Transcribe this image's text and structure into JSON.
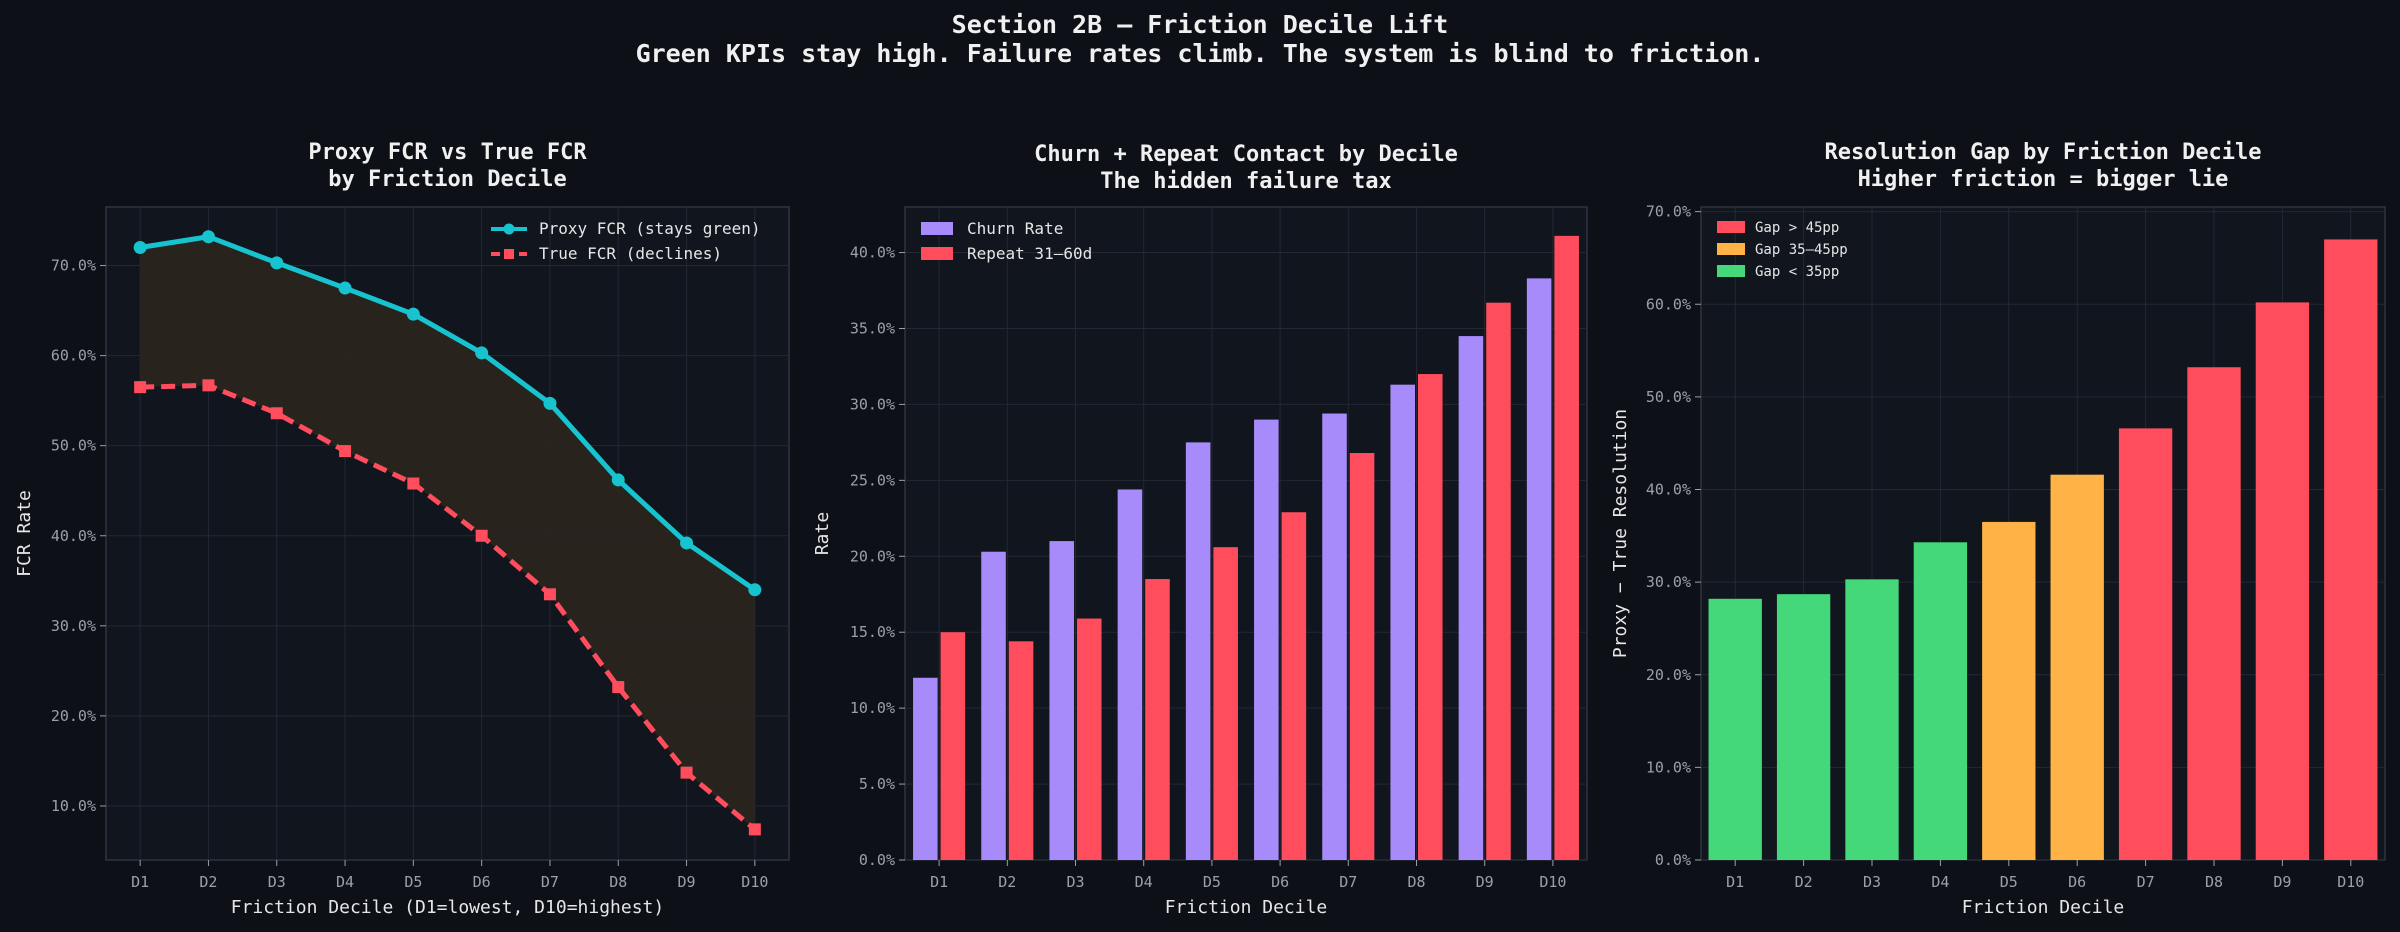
{
  "page": {
    "title": "Section 2B — Friction Decile Lift",
    "subtitle": "Green KPIs stay high. Failure rates climb. The system is blind to friction."
  },
  "colors": {
    "background": "#0d1017",
    "panel": "#11151d",
    "grid": "#232833",
    "axis": "#2e3440",
    "tick_text": "#9aa0aa",
    "text": "#e6e6e6",
    "cyan": "#17c3cf",
    "red": "#ff4d5e",
    "purple": "#a78bfa",
    "orange": "#ffb347",
    "green": "#44d87a",
    "fill": "#2a241d"
  },
  "chart_data": [
    {
      "type": "line",
      "title_lines": [
        "Proxy FCR vs True FCR",
        "by Friction Decile"
      ],
      "xlabel": "Friction Decile (D1=lowest, D10=highest)",
      "ylabel": "FCR Rate",
      "categories": [
        "D1",
        "D2",
        "D3",
        "D4",
        "D5",
        "D6",
        "D7",
        "D8",
        "D9",
        "D10"
      ],
      "ylim": [
        4,
        76.5
      ],
      "yticks": [
        10,
        20,
        30,
        40,
        50,
        60,
        70
      ],
      "tick_format": "percent_1dp",
      "grid": true,
      "legend": "top-right",
      "shaded_gap_between_series": true,
      "series": [
        {
          "name": "Proxy FCR (stays green)",
          "values": [
            72.0,
            73.2,
            70.3,
            67.5,
            64.6,
            60.3,
            54.7,
            46.2,
            39.2,
            34.0
          ],
          "color": "#17c3cf",
          "style": "solid",
          "marker": "circle"
        },
        {
          "name": "True FCR (declines)",
          "values": [
            56.5,
            56.7,
            53.6,
            49.4,
            45.8,
            40.0,
            33.5,
            23.2,
            13.7,
            7.4
          ],
          "color": "#ff4d5e",
          "style": "dashed",
          "marker": "square"
        }
      ]
    },
    {
      "type": "bar",
      "title_lines": [
        "Churn + Repeat Contact by Decile",
        "The hidden failure tax"
      ],
      "xlabel": "Friction Decile",
      "ylabel": "Rate",
      "categories": [
        "D1",
        "D2",
        "D3",
        "D4",
        "D5",
        "D6",
        "D7",
        "D8",
        "D9",
        "D10"
      ],
      "ylim": [
        0,
        43
      ],
      "yticks": [
        0,
        5,
        10,
        15,
        20,
        25,
        30,
        35,
        40
      ],
      "tick_format": "percent_1dp",
      "grid": true,
      "legend": "top-left",
      "series": [
        {
          "name": "Churn Rate",
          "values": [
            12.0,
            20.3,
            21.0,
            24.4,
            27.5,
            29.0,
            29.4,
            31.3,
            34.5,
            38.3
          ],
          "color": "#a78bfa"
        },
        {
          "name": "Repeat 31–60d",
          "values": [
            15.0,
            14.4,
            15.9,
            18.5,
            20.6,
            22.9,
            26.8,
            32.0,
            36.7,
            41.1
          ],
          "color": "#ff4d5e"
        }
      ]
    },
    {
      "type": "bar",
      "title_lines": [
        "Resolution Gap by Friction Decile",
        "Higher friction = bigger lie"
      ],
      "xlabel": "Friction Decile",
      "ylabel": "Proxy − True Resolution",
      "categories": [
        "D1",
        "D2",
        "D3",
        "D4",
        "D5",
        "D6",
        "D7",
        "D8",
        "D9",
        "D10"
      ],
      "ylim": [
        0,
        70.5
      ],
      "yticks": [
        0,
        10,
        20,
        30,
        40,
        50,
        60,
        70
      ],
      "tick_format": "percent_1dp",
      "grid": true,
      "legend": "top-left",
      "values": [
        28.2,
        28.7,
        30.3,
        34.3,
        36.5,
        41.6,
        46.6,
        53.2,
        60.2,
        67.0
      ],
      "value_groups": [
        "low",
        "low",
        "low",
        "low",
        "mid",
        "mid",
        "high",
        "high",
        "high",
        "high"
      ],
      "legend_entries": [
        {
          "key": "high",
          "name": "Gap > 45pp",
          "color": "#ff4d5e"
        },
        {
          "key": "mid",
          "name": "Gap 35–45pp",
          "color": "#ffb347"
        },
        {
          "key": "low",
          "name": "Gap < 35pp",
          "color": "#44d87a"
        }
      ]
    }
  ]
}
